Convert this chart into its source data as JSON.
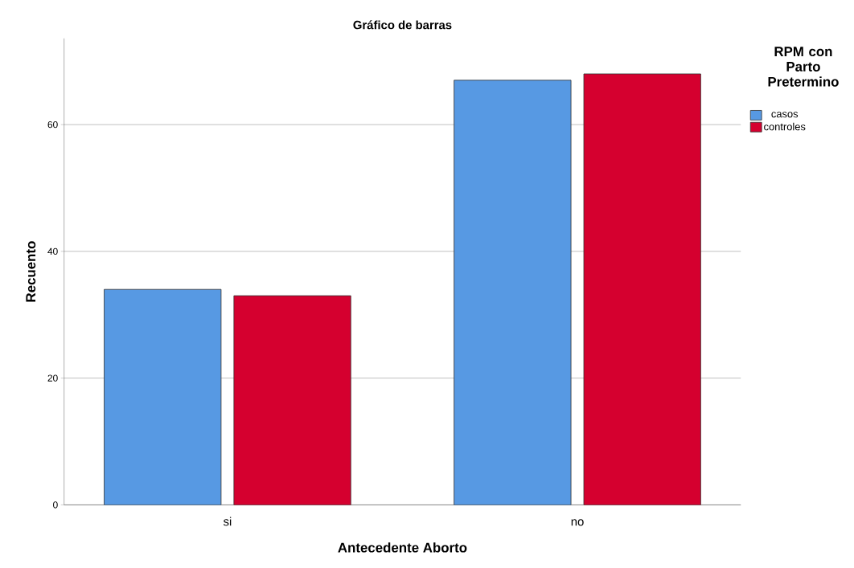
{
  "chart_data": {
    "type": "bar",
    "title": "Gráfico de barras",
    "xlabel": "Antecedente Aborto",
    "ylabel": "Recuento",
    "legend_title": "RPM con Parto Pretermino",
    "categories": [
      "si",
      "no"
    ],
    "series": [
      {
        "name": "casos",
        "color": "#5799e3",
        "values": [
          34,
          67
        ]
      },
      {
        "name": "controles",
        "color": "#d5002f",
        "values": [
          33,
          68
        ]
      }
    ],
    "ylim": [
      0,
      73.6
    ],
    "yticks": [
      0,
      20,
      40,
      60
    ],
    "grid": "y",
    "legend": "top right"
  }
}
